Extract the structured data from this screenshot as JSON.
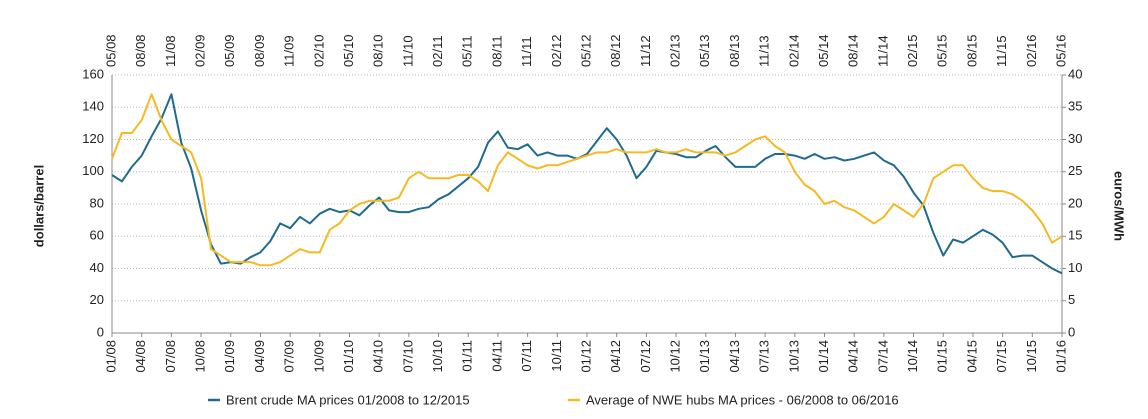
{
  "chart_data": {
    "type": "line",
    "x": [
      "01/08",
      "02/08",
      "03/08",
      "04/08",
      "05/08",
      "06/08",
      "07/08",
      "08/08",
      "09/08",
      "10/08",
      "11/08",
      "12/08",
      "01/09",
      "02/09",
      "03/09",
      "04/09",
      "05/09",
      "06/09",
      "07/09",
      "08/09",
      "09/09",
      "10/09",
      "11/09",
      "12/09",
      "01/10",
      "02/10",
      "03/10",
      "04/10",
      "05/10",
      "06/10",
      "07/10",
      "08/10",
      "09/10",
      "10/10",
      "11/10",
      "12/10",
      "01/11",
      "02/11",
      "03/11",
      "04/11",
      "05/11",
      "06/11",
      "07/11",
      "08/11",
      "09/11",
      "10/11",
      "11/11",
      "12/11",
      "01/12",
      "02/12",
      "03/12",
      "04/12",
      "05/12",
      "06/12",
      "07/12",
      "08/12",
      "09/12",
      "10/12",
      "11/12",
      "12/12",
      "01/13",
      "02/13",
      "03/13",
      "04/13",
      "05/13",
      "06/13",
      "07/13",
      "08/13",
      "09/13",
      "10/13",
      "11/13",
      "12/13",
      "01/14",
      "02/14",
      "03/14",
      "04/14",
      "05/14",
      "06/14",
      "07/14",
      "08/14",
      "09/14",
      "10/14",
      "11/14",
      "12/14",
      "01/15",
      "02/15",
      "03/15",
      "04/15",
      "05/15",
      "06/15",
      "07/15",
      "08/15",
      "09/15",
      "10/15",
      "11/15",
      "12/15",
      "01/16"
    ],
    "x2": [
      "05/08",
      "06/08",
      "07/08",
      "08/08",
      "09/08",
      "10/08",
      "11/08",
      "12/08",
      "01/09",
      "02/09",
      "03/09",
      "04/09",
      "05/09",
      "06/09",
      "07/09",
      "08/09",
      "09/09",
      "10/09",
      "11/09",
      "12/09",
      "01/10",
      "02/10",
      "03/10",
      "04/10",
      "05/10",
      "06/10",
      "07/10",
      "08/10",
      "09/10",
      "10/10",
      "11/10",
      "12/10",
      "01/11",
      "02/11",
      "03/11",
      "04/11",
      "05/11",
      "06/11",
      "07/11",
      "08/11",
      "09/11",
      "10/11",
      "11/11",
      "12/11",
      "01/12",
      "02/12",
      "03/12",
      "04/12",
      "05/12",
      "06/12",
      "07/12",
      "08/12",
      "09/12",
      "10/12",
      "11/12",
      "12/12",
      "01/13",
      "02/13",
      "03/13",
      "04/13",
      "05/13",
      "06/13",
      "07/13",
      "08/13",
      "09/13",
      "10/13",
      "11/13",
      "12/13",
      "01/14",
      "02/14",
      "03/14",
      "04/14",
      "05/14",
      "06/14",
      "07/14",
      "08/14",
      "09/14",
      "10/14",
      "11/14",
      "12/14",
      "01/15",
      "02/15",
      "03/15",
      "04/15",
      "05/15",
      "06/15",
      "07/15",
      "08/15",
      "09/15",
      "10/15",
      "11/15",
      "12/15",
      "01/16",
      "02/16",
      "03/16",
      "04/16",
      "05/16"
    ],
    "xticks": [
      "01/08",
      "04/08",
      "07/08",
      "10/08",
      "01/09",
      "04/09",
      "07/09",
      "10/09",
      "01/10",
      "04/10",
      "07/10",
      "10/10",
      "01/11",
      "04/11",
      "07/11",
      "10/11",
      "01/12",
      "04/12",
      "07/12",
      "10/12",
      "01/13",
      "04/13",
      "07/13",
      "10/13",
      "01/14",
      "04/14",
      "07/14",
      "10/14",
      "01/15",
      "04/15",
      "07/15",
      "10/15",
      "01/16"
    ],
    "x2ticks": [
      "05/08",
      "08/08",
      "11/08",
      "02/09",
      "05/09",
      "08/09",
      "11/09",
      "02/10",
      "05/10",
      "08/10",
      "11/10",
      "02/11",
      "05/11",
      "08/11",
      "11/11",
      "02/12",
      "05/12",
      "08/12",
      "11/12",
      "02/13",
      "05/13",
      "08/13",
      "11/13",
      "02/14",
      "05/14",
      "08/14",
      "11/14",
      "02/15",
      "05/15",
      "08/15",
      "11/15",
      "02/16",
      "05/16"
    ],
    "ylabel": "dollars/barrel",
    "y2label": "euros/MWh",
    "ylim": [
      0,
      160
    ],
    "yticks": [
      0,
      20,
      40,
      60,
      80,
      100,
      120,
      140,
      160
    ],
    "y2lim": [
      0,
      40
    ],
    "y2ticks": [
      0,
      5,
      10,
      15,
      20,
      25,
      30,
      35,
      40
    ],
    "grid": true,
    "legend": "bottom",
    "series": [
      {
        "name": "Brent crude MA prices 01/2008 to 12/2015",
        "color": "#1f6b8e",
        "values": [
          98,
          94,
          103,
          110,
          122,
          133,
          148,
          118,
          102,
          76,
          55,
          43,
          44,
          43,
          47,
          50,
          57,
          68,
          65,
          72,
          68,
          74,
          77,
          75,
          76,
          73,
          79,
          84,
          76,
          75,
          75,
          77,
          78,
          83,
          86,
          91,
          96,
          103,
          118,
          125,
          115,
          114,
          117,
          110,
          112,
          110,
          110,
          108,
          111,
          119,
          127,
          120,
          110,
          96,
          103,
          113,
          112,
          111,
          109,
          109,
          113,
          116,
          109,
          103,
          103,
          103,
          108,
          111,
          111,
          110,
          108,
          111,
          108,
          109,
          107,
          108,
          110,
          112,
          107,
          104,
          97,
          87,
          79,
          62,
          48,
          58,
          56,
          60,
          64,
          61,
          56,
          47,
          48,
          48,
          44,
          40,
          37
        ]
      },
      {
        "name": "Average of NWE hubs MA prices - 06/2008 to  06/2016",
        "color": "#f5b922",
        "axis": "y2",
        "xaxis": "x2",
        "values": [
          27,
          31,
          31,
          33,
          37,
          33,
          30,
          29,
          28,
          24,
          13,
          12,
          11,
          11,
          11,
          10.5,
          10.5,
          11,
          12,
          13,
          12.5,
          12.5,
          16,
          17,
          19,
          20,
          20.5,
          20.5,
          20.5,
          21,
          24,
          25,
          24,
          24,
          24,
          24.5,
          24.5,
          23.5,
          22,
          26,
          28,
          27,
          26,
          25.5,
          26,
          26,
          26.5,
          27,
          27.5,
          28,
          28,
          28.5,
          28,
          28,
          28,
          28.5,
          28,
          28,
          28.5,
          28,
          28,
          28,
          27.5,
          28,
          29,
          30,
          30.5,
          29,
          28,
          25,
          23,
          22,
          20,
          20.5,
          19.5,
          19,
          18,
          17,
          18,
          20,
          19,
          18,
          20,
          24,
          25,
          26,
          26,
          24,
          22.5,
          22,
          22,
          21.5,
          20.5,
          19,
          17,
          14,
          15
        ]
      }
    ]
  }
}
